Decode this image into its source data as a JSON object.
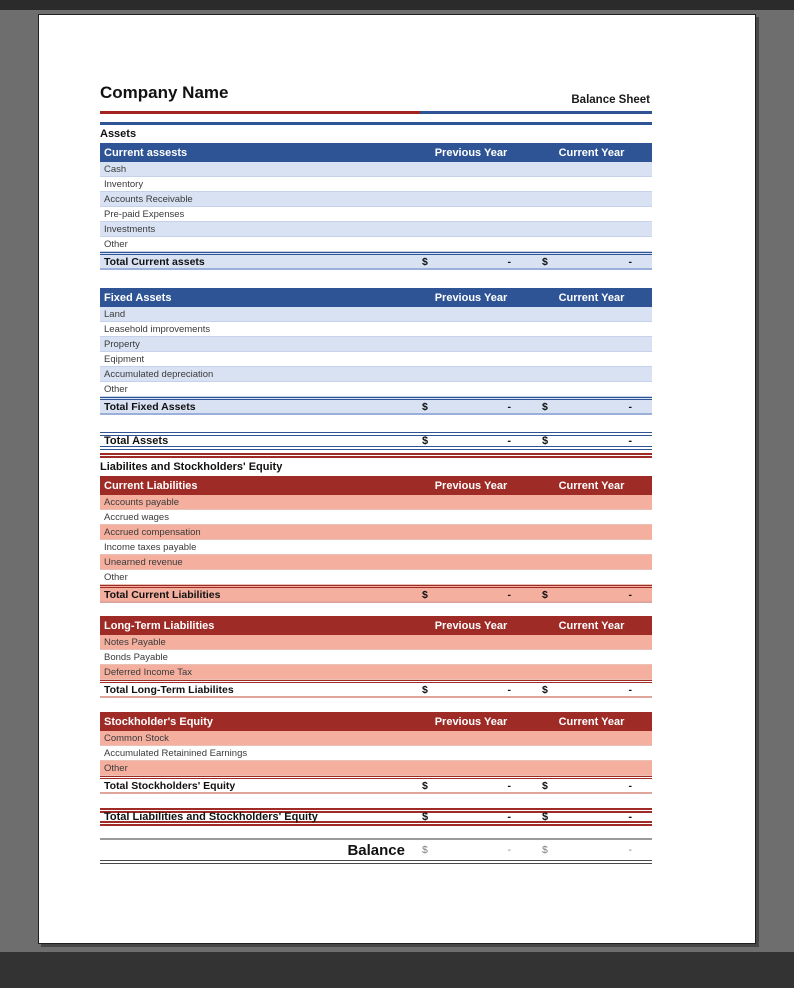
{
  "document": {
    "company_name": "Company Name",
    "title": "Balance Sheet",
    "section_assets": "Assets",
    "section_liabilities": "Liabilites and Stockholders' Equity"
  },
  "columns": {
    "previous": "Previous Year",
    "current": "Current Year"
  },
  "amounts": {
    "currency_symbol": "$",
    "empty_value": "-"
  },
  "tables": [
    {
      "title": "Current assests",
      "theme": "blue",
      "rows": [
        "Cash",
        "Inventory",
        "Accounts Receivable",
        "Pre-paid Expenses",
        "Investments",
        "Other"
      ],
      "total_label": "Total Current assets"
    },
    {
      "title": "Fixed Assets",
      "theme": "blue",
      "rows": [
        "Land",
        "Leasehold improvements",
        "Property",
        "Eqipment",
        "Accumulated depreciation",
        "Other"
      ],
      "total_label": "Total Fixed Assets"
    },
    {
      "title": "Current Liabilities",
      "theme": "red",
      "rows": [
        "Accounts payable",
        "Accrued wages",
        "Accrued compensation",
        "Income taxes payable",
        "Unearned revenue",
        "Other"
      ],
      "total_label": "Total Current Liabilities"
    },
    {
      "title": "Long-Term Liabilities",
      "theme": "red",
      "rows": [
        "Notes Payable",
        "Bonds Payable",
        "Deferred Income Tax"
      ],
      "total_label": "Total Long-Term Liabilites"
    },
    {
      "title": "Stockholder's Equity",
      "theme": "red",
      "rows": [
        "Common Stock",
        "Accumulated Retainined Earnings",
        "Other"
      ],
      "total_label": "Total Stockholders' Equity"
    }
  ],
  "summary": {
    "total_assets": "Total Assets",
    "total_liabilities_equity": "Total Liabilities and Stockholders' Equity",
    "balance": "Balance"
  },
  "colors": {
    "blue_header": "#2E5496",
    "blue_stripe": "#D9E2F3",
    "red_header": "#9E2B25",
    "red_stripe": "#F4AF9F"
  }
}
